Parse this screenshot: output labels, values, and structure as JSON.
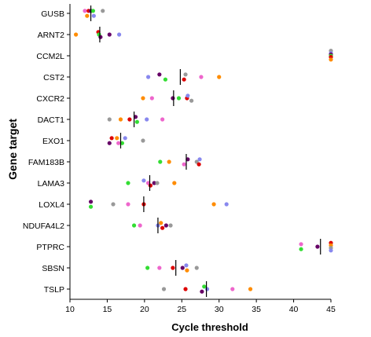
{
  "chart_data": {
    "type": "scatter",
    "xlabel": "Cycle threshold",
    "ylabel": "Gene target",
    "xlim": [
      10,
      45
    ],
    "x_ticks": [
      10,
      15,
      20,
      25,
      30,
      35,
      40,
      45
    ],
    "grid": false,
    "colors": {
      "orange": "#ff8c00",
      "green": "#33dd33",
      "purple": "#660066",
      "red": "#dd0000",
      "blue": "#8888ee",
      "pink": "#ee66cc",
      "gray": "#999999",
      "median": "#000000"
    },
    "categories": [
      "GUSB",
      "ARNT2",
      "CCM2L",
      "CST2",
      "CXCR2",
      "DACT1",
      "EXO1",
      "FAM183B",
      "LAMA3",
      "LOXL4",
      "NDUFA4L2",
      "PTPRC",
      "SBSN",
      "TSLP"
    ],
    "genes": [
      {
        "name": "GUSB",
        "median": 12.8,
        "points": [
          {
            "x": 12.0,
            "c": "pink",
            "dy": -1
          },
          {
            "x": 12.3,
            "c": "orange",
            "dy": 1
          },
          {
            "x": 12.5,
            "c": "red",
            "dy": -1
          },
          {
            "x": 12.8,
            "c": "purple",
            "dy": -1
          },
          {
            "x": 13.1,
            "c": "green",
            "dy": -1
          },
          {
            "x": 13.2,
            "c": "blue",
            "dy": 1
          },
          {
            "x": 14.4,
            "c": "gray",
            "dy": -1
          }
        ]
      },
      {
        "name": "ARNT2",
        "median": 14.0,
        "points": [
          {
            "x": 10.8,
            "c": "orange",
            "dy": 0
          },
          {
            "x": 13.8,
            "c": "red",
            "dy": -1
          },
          {
            "x": 13.9,
            "c": "green",
            "dy": 0
          },
          {
            "x": 14.1,
            "c": "purple",
            "dy": 1
          },
          {
            "x": 15.3,
            "c": "purple",
            "dy": 0
          },
          {
            "x": 16.6,
            "c": "blue",
            "dy": 0
          }
        ]
      },
      {
        "name": "CCM2L",
        "median": null,
        "points": [
          {
            "x": 45,
            "c": "gray",
            "dy": -2
          },
          {
            "x": 45,
            "c": "blue",
            "dy": -1
          },
          {
            "x": 45,
            "c": "purple",
            "dy": -0.5
          },
          {
            "x": 45,
            "c": "green",
            "dy": 0
          },
          {
            "x": 45,
            "c": "red",
            "dy": 0.5
          },
          {
            "x": 45,
            "c": "orange",
            "dy": 1.5
          }
        ]
      },
      {
        "name": "CST2",
        "median": 24.8,
        "points": [
          {
            "x": 20.5,
            "c": "blue",
            "dy": 0
          },
          {
            "x": 22.0,
            "c": "purple",
            "dy": -1
          },
          {
            "x": 22.8,
            "c": "green",
            "dy": 1
          },
          {
            "x": 25.3,
            "c": "red",
            "dy": 1
          },
          {
            "x": 25.5,
            "c": "gray",
            "dy": -1
          },
          {
            "x": 27.6,
            "c": "pink",
            "dy": 0
          },
          {
            "x": 30.0,
            "c": "orange",
            "dy": 0
          }
        ]
      },
      {
        "name": "CXCR2",
        "median": 23.9,
        "points": [
          {
            "x": 19.8,
            "c": "orange",
            "dy": 0
          },
          {
            "x": 21.0,
            "c": "pink",
            "dy": 0
          },
          {
            "x": 23.8,
            "c": "purple",
            "dy": 0
          },
          {
            "x": 24.6,
            "c": "green",
            "dy": 0
          },
          {
            "x": 25.7,
            "c": "red",
            "dy": 0
          },
          {
            "x": 25.8,
            "c": "blue",
            "dy": -1
          },
          {
            "x": 26.3,
            "c": "gray",
            "dy": 1
          }
        ]
      },
      {
        "name": "DACT1",
        "median": 18.6,
        "points": [
          {
            "x": 15.3,
            "c": "gray",
            "dy": 0
          },
          {
            "x": 16.8,
            "c": "orange",
            "dy": 0
          },
          {
            "x": 18.0,
            "c": "red",
            "dy": 0
          },
          {
            "x": 18.8,
            "c": "purple",
            "dy": -1
          },
          {
            "x": 19.0,
            "c": "green",
            "dy": 1
          },
          {
            "x": 20.3,
            "c": "blue",
            "dy": 0
          },
          {
            "x": 22.4,
            "c": "pink",
            "dy": 0
          }
        ]
      },
      {
        "name": "EXO1",
        "median": 16.8,
        "points": [
          {
            "x": 15.3,
            "c": "purple",
            "dy": 1
          },
          {
            "x": 15.6,
            "c": "red",
            "dy": -1
          },
          {
            "x": 16.3,
            "c": "orange",
            "dy": -1
          },
          {
            "x": 16.5,
            "c": "pink",
            "dy": 1
          },
          {
            "x": 17.0,
            "c": "green",
            "dy": 1
          },
          {
            "x": 17.4,
            "c": "blue",
            "dy": -1
          },
          {
            "x": 19.8,
            "c": "gray",
            "dy": 0
          }
        ]
      },
      {
        "name": "FAM183B",
        "median": 25.6,
        "points": [
          {
            "x": 22.1,
            "c": "green",
            "dy": 0
          },
          {
            "x": 23.3,
            "c": "orange",
            "dy": 0
          },
          {
            "x": 25.3,
            "c": "pink",
            "dy": 1
          },
          {
            "x": 25.8,
            "c": "purple",
            "dy": -1
          },
          {
            "x": 27.0,
            "c": "gray",
            "dy": 0
          },
          {
            "x": 27.3,
            "c": "red",
            "dy": 1
          },
          {
            "x": 27.4,
            "c": "blue",
            "dy": -1
          }
        ]
      },
      {
        "name": "LAMA3",
        "median": 20.7,
        "points": [
          {
            "x": 17.8,
            "c": "green",
            "dy": 0
          },
          {
            "x": 19.9,
            "c": "blue",
            "dy": -1
          },
          {
            "x": 20.5,
            "c": "pink",
            "dy": 0
          },
          {
            "x": 20.8,
            "c": "red",
            "dy": 1
          },
          {
            "x": 21.3,
            "c": "purple",
            "dy": 0
          },
          {
            "x": 21.7,
            "c": "gray",
            "dy": 0
          },
          {
            "x": 24.0,
            "c": "orange",
            "dy": 0
          }
        ]
      },
      {
        "name": "LOXL4",
        "median": 19.9,
        "points": [
          {
            "x": 12.8,
            "c": "purple",
            "dy": -1
          },
          {
            "x": 12.8,
            "c": "green",
            "dy": 1
          },
          {
            "x": 15.8,
            "c": "gray",
            "dy": 0
          },
          {
            "x": 17.8,
            "c": "pink",
            "dy": 0
          },
          {
            "x": 19.9,
            "c": "red",
            "dy": 0
          },
          {
            "x": 29.3,
            "c": "orange",
            "dy": 0
          },
          {
            "x": 31.0,
            "c": "blue",
            "dy": 0
          }
        ]
      },
      {
        "name": "NDUFA4L2",
        "median": 21.8,
        "points": [
          {
            "x": 18.6,
            "c": "green",
            "dy": 0
          },
          {
            "x": 19.4,
            "c": "pink",
            "dy": 0
          },
          {
            "x": 21.8,
            "c": "blue",
            "dy": 0
          },
          {
            "x": 22.2,
            "c": "orange",
            "dy": -1
          },
          {
            "x": 22.4,
            "c": "red",
            "dy": 1
          },
          {
            "x": 22.9,
            "c": "purple",
            "dy": 0
          },
          {
            "x": 23.5,
            "c": "gray",
            "dy": 0
          }
        ]
      },
      {
        "name": "PTPRC",
        "median": 43.6,
        "points": [
          {
            "x": 41.0,
            "c": "pink",
            "dy": -1
          },
          {
            "x": 41.0,
            "c": "green",
            "dy": 1
          },
          {
            "x": 43.2,
            "c": "purple",
            "dy": 0
          },
          {
            "x": 45,
            "c": "red",
            "dy": -1.5
          },
          {
            "x": 45,
            "c": "orange",
            "dy": -0.5
          },
          {
            "x": 45,
            "c": "gray",
            "dy": 0.5
          },
          {
            "x": 45,
            "c": "blue",
            "dy": 1.5
          }
        ]
      },
      {
        "name": "SBSN",
        "median": 24.2,
        "points": [
          {
            "x": 20.4,
            "c": "green",
            "dy": 0
          },
          {
            "x": 22.0,
            "c": "pink",
            "dy": 0
          },
          {
            "x": 23.8,
            "c": "red",
            "dy": 0
          },
          {
            "x": 25.1,
            "c": "purple",
            "dy": 0
          },
          {
            "x": 25.6,
            "c": "blue",
            "dy": -1
          },
          {
            "x": 25.7,
            "c": "orange",
            "dy": 1
          },
          {
            "x": 27.0,
            "c": "gray",
            "dy": 0
          }
        ]
      },
      {
        "name": "TSLP",
        "median": 28.3,
        "points": [
          {
            "x": 22.6,
            "c": "gray",
            "dy": 0
          },
          {
            "x": 25.5,
            "c": "red",
            "dy": 0
          },
          {
            "x": 27.7,
            "c": "purple",
            "dy": 1
          },
          {
            "x": 28.0,
            "c": "green",
            "dy": -1
          },
          {
            "x": 28.4,
            "c": "blue",
            "dy": 0
          },
          {
            "x": 31.8,
            "c": "pink",
            "dy": 0
          },
          {
            "x": 34.2,
            "c": "orange",
            "dy": 0
          }
        ]
      }
    ]
  }
}
